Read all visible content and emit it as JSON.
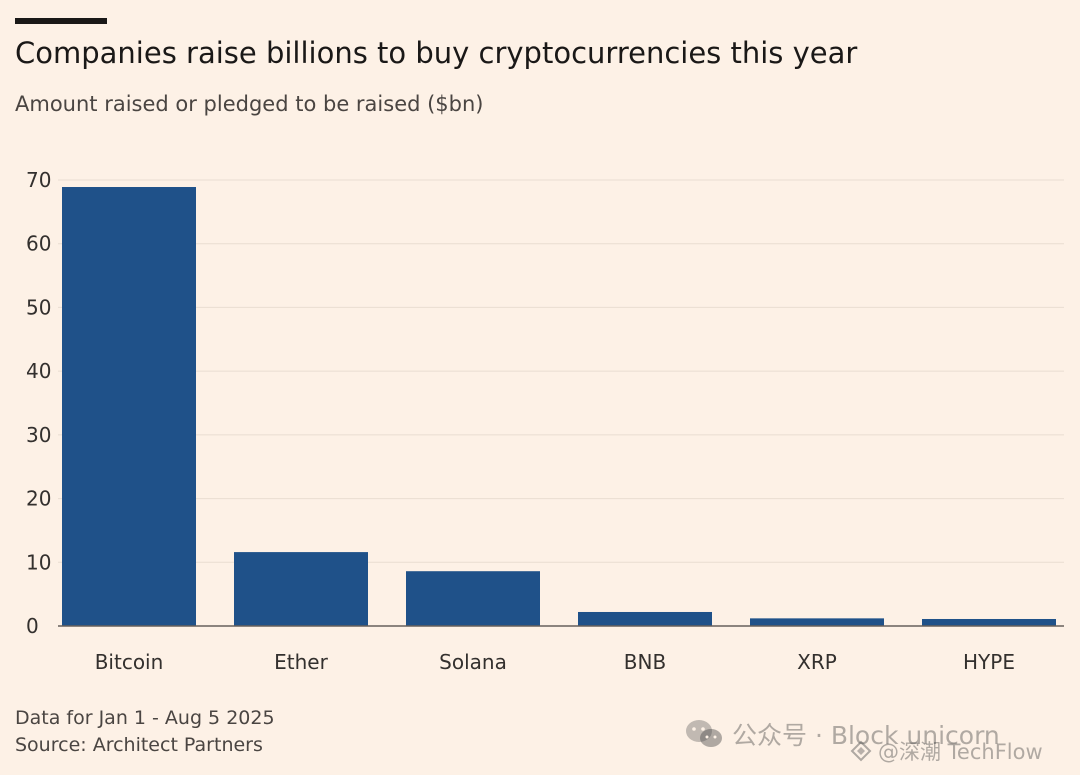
{
  "chart_data": {
    "type": "bar",
    "title": "Companies raise billions to buy cryptocurrencies this year",
    "subtitle": "Amount raised or pledged to be raised ($bn)",
    "categories": [
      "Bitcoin",
      "Ether",
      "Solana",
      "BNB",
      "XRP",
      "HYPE"
    ],
    "values": [
      68.9,
      11.6,
      8.6,
      2.2,
      1.2,
      1.1
    ],
    "xlabel": "",
    "ylabel": "",
    "ylim": [
      0,
      70
    ],
    "yticks": [
      "0",
      "10",
      "20",
      "30",
      "40",
      "50",
      "60",
      "70"
    ],
    "grid": true,
    "legend": "none"
  },
  "footnotes": {
    "date_range": "Data for Jan 1 - Aug 5 2025",
    "source": "Source: Architect Partners"
  },
  "watermarks": {
    "wechat_account": "公众号 · Block unicorn",
    "techflow": "@深潮 TechFlow"
  },
  "colors": {
    "background": "#fdf1e6",
    "bar": "#1f5189",
    "gridline": "#e9ddd1",
    "baseline": "#66605c",
    "text": "#33302e"
  }
}
